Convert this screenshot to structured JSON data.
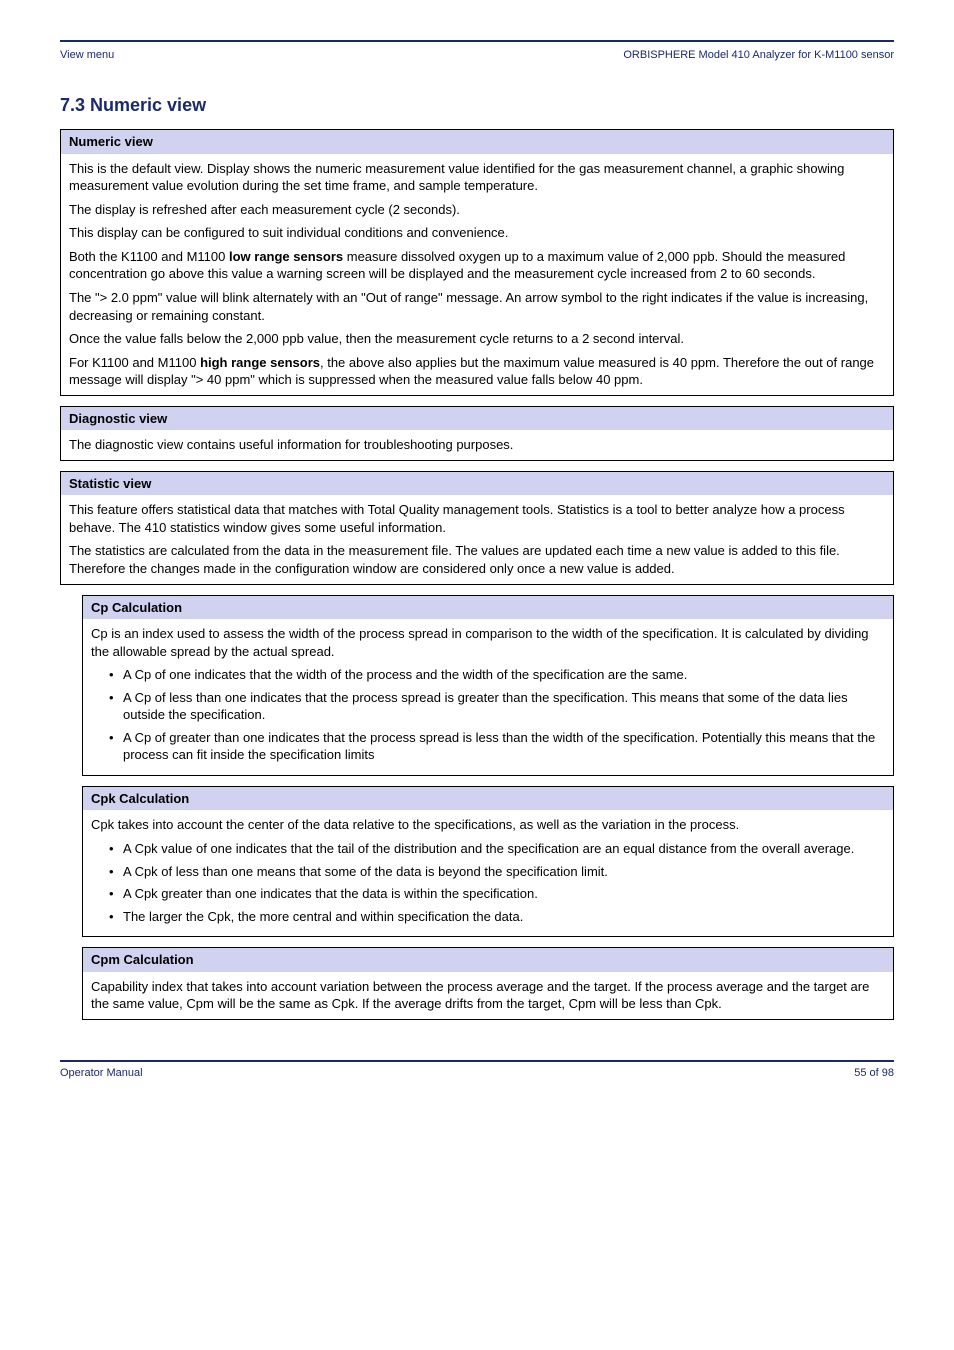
{
  "header": {
    "left": "View menu",
    "right": "ORBISPHERE Model 410 Analyzer for K-M1100 sensor"
  },
  "section_title": "7.3 Numeric view",
  "numeric": {
    "title": "Numeric view",
    "p1": "This is the default view. Display shows the numeric measurement value identified for the gas measurement channel, a graphic showing measurement value evolution during the set time frame, and sample temperature.",
    "p2": "The display is refreshed after each measurement cycle (2 seconds).",
    "p3": "This display can be configured to suit individual conditions and convenience.",
    "p4a": "Both the K1100 and M1100 ",
    "p4b": "low range sensors",
    "p4c": " measure dissolved oxygen up to a maximum value of 2,000 ppb. Should the measured concentration go above this value a warning screen will be displayed and the measurement cycle increased from 2 to 60 seconds.",
    "p5": "The \"> 2.0 ppm\" value will blink alternately with an \"Out of range\" message. An arrow symbol to the right indicates if the value is increasing, decreasing or remaining constant.",
    "p6": "Once the value falls below the 2,000 ppb value, then the measurement cycle returns to a 2 second interval.",
    "p7a": "For K1100 and M1100 ",
    "p7b": "high range sensors",
    "p7c": ", the above also applies but the maximum value measured is 40 ppm. Therefore the out of range message will display \"> 40 ppm\" which is suppressed when the measured value falls below 40 ppm."
  },
  "diagnostic": {
    "title": "Diagnostic view",
    "body": "The diagnostic view contains useful information for troubleshooting purposes."
  },
  "statistic": {
    "title": "Statistic view",
    "p1": "This feature offers statistical data that matches with Total Quality management tools. Statistics is a tool to better analyze how a process behave. The 410 statistics window gives some useful information.",
    "p2": "The statistics are calculated from the data in the measurement file. The values are updated each time a new value is added to this file. Therefore the changes made in the configuration window are considered only once a new value is added."
  },
  "cp": {
    "title": "Cp Calculation",
    "intro": "Cp is an index used to assess the width of the process spread in comparison to the width of the specification. It is calculated by dividing the allowable spread by the actual spread.",
    "b1": "A Cp of one indicates that the width of the process and the width of the specification are the same.",
    "b2": "A Cp of less than one indicates that the process spread is greater than the specification. This means that some of the data lies outside the specification.",
    "b3": "A Cp of greater than one indicates that the process spread is less than the width of the specification. Potentially this means that the process can fit inside the specification limits"
  },
  "cpk": {
    "title": "Cpk Calculation",
    "intro": "Cpk takes into account the center of the data relative to the specifications, as well as the variation in the process.",
    "b1": "A Cpk value of one indicates that the tail of the distribution and the specification are an equal distance from the overall average.",
    "b2": "A Cpk of less than one means that some of the data is beyond the specification limit.",
    "b3": "A Cpk greater than one indicates that the data is within the specification.",
    "b4": "The larger the Cpk, the more central and within specification the data."
  },
  "cpm": {
    "title": "Cpm Calculation",
    "body": "Capability index that takes into account variation between the process average and the target. If the process average and the target are the same value, Cpm will be the same as Cpk. If the average drifts from the target, Cpm will be less than Cpk."
  },
  "footer": {
    "left": "Operator Manual",
    "right": "55 of 98"
  }
}
